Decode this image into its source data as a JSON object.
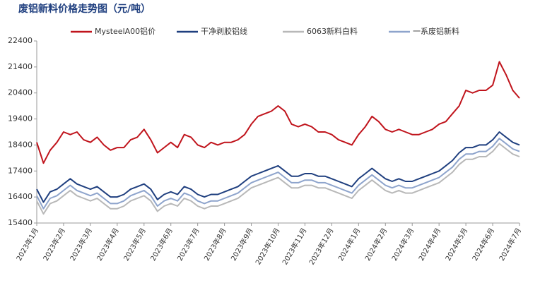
{
  "chart_data": {
    "type": "line",
    "title": "废铝新料价格走势图（元/吨）",
    "categories": [
      "2023年1月",
      null,
      null,
      null,
      "2023年2月",
      null,
      null,
      null,
      "2023年3月",
      null,
      null,
      null,
      "2023年4月",
      null,
      null,
      null,
      "2023年5月",
      null,
      null,
      null,
      "2023年6月",
      null,
      null,
      null,
      "2023年7月",
      null,
      null,
      null,
      "2023年8月",
      null,
      null,
      null,
      "2023年9月",
      null,
      null,
      null,
      "2023年10月",
      null,
      null,
      null,
      "2023年11月",
      null,
      null,
      null,
      "2023年12月",
      null,
      null,
      null,
      "2024年1月",
      null,
      null,
      null,
      "2024年2月",
      null,
      null,
      null,
      "2024年3月",
      null,
      null,
      null,
      "2024年4月",
      null,
      null,
      null,
      "2024年5月",
      null,
      null,
      null,
      "2024年6月",
      null,
      null,
      null,
      "2024年7月"
    ],
    "series": [
      {
        "name": "MysteelA00铝价",
        "color": "#c0141c",
        "values": [
          18500,
          17700,
          18200,
          18500,
          18900,
          18800,
          18900,
          18600,
          18500,
          18700,
          18400,
          18200,
          18300,
          18300,
          18600,
          18700,
          19000,
          18600,
          18100,
          18300,
          18500,
          18300,
          18800,
          18700,
          18400,
          18300,
          18500,
          18400,
          18500,
          18500,
          18600,
          18800,
          19200,
          19500,
          19600,
          19700,
          19900,
          19700,
          19200,
          19100,
          19200,
          19100,
          18900,
          18900,
          18800,
          18600,
          18500,
          18400,
          18800,
          19100,
          19500,
          19300,
          19000,
          18900,
          19000,
          18900,
          18800,
          18800,
          18900,
          19000,
          19200,
          19300,
          19600,
          19900,
          20500,
          20400,
          20500,
          20500,
          20700,
          21600,
          21100,
          20500,
          20200
        ]
      },
      {
        "name": "干净剥胶铝线",
        "color": "#1f3f7f",
        "values": [
          16700,
          16200,
          16600,
          16700,
          16900,
          17100,
          16900,
          16800,
          16700,
          16800,
          16600,
          16400,
          16400,
          16500,
          16700,
          16800,
          16900,
          16700,
          16300,
          16500,
          16600,
          16500,
          16800,
          16700,
          16500,
          16400,
          16500,
          16500,
          16600,
          16700,
          16800,
          17000,
          17200,
          17300,
          17400,
          17500,
          17600,
          17400,
          17200,
          17200,
          17300,
          17300,
          17200,
          17200,
          17100,
          17000,
          16900,
          16800,
          17100,
          17300,
          17500,
          17300,
          17100,
          17000,
          17100,
          17000,
          17000,
          17100,
          17200,
          17300,
          17400,
          17600,
          17800,
          18100,
          18300,
          18300,
          18400,
          18400,
          18600,
          18900,
          18700,
          18500,
          18400
        ]
      },
      {
        "name": "6063新料白料",
        "color": "#b8b8b8",
        "values": [
          16250,
          15750,
          16150,
          16250,
          16450,
          16650,
          16450,
          16350,
          16250,
          16350,
          16150,
          15950,
          15950,
          16050,
          16250,
          16350,
          16450,
          16250,
          15850,
          16050,
          16150,
          16050,
          16350,
          16250,
          16050,
          15950,
          16050,
          16050,
          16150,
          16250,
          16350,
          16550,
          16750,
          16850,
          16950,
          17050,
          17150,
          16950,
          16750,
          16750,
          16850,
          16850,
          16750,
          16750,
          16650,
          16550,
          16450,
          16350,
          16650,
          16850,
          17050,
          16850,
          16650,
          16550,
          16650,
          16550,
          16550,
          16650,
          16750,
          16850,
          16950,
          17150,
          17350,
          17650,
          17850,
          17850,
          17950,
          17950,
          18150,
          18450,
          18250,
          18050,
          17950
        ]
      },
      {
        "name": "一系废铝新料",
        "color": "#8ea4cc",
        "values": [
          16450,
          15950,
          16350,
          16450,
          16650,
          16850,
          16650,
          16550,
          16450,
          16550,
          16350,
          16150,
          16150,
          16250,
          16450,
          16550,
          16650,
          16450,
          16050,
          16250,
          16350,
          16250,
          16550,
          16450,
          16250,
          16150,
          16250,
          16250,
          16350,
          16450,
          16550,
          16750,
          16950,
          17050,
          17150,
          17250,
          17350,
          17150,
          16950,
          16950,
          17050,
          17050,
          16950,
          16950,
          16850,
          16750,
          16650,
          16550,
          16850,
          17050,
          17250,
          17050,
          16850,
          16750,
          16850,
          16750,
          16750,
          16850,
          16950,
          17050,
          17150,
          17350,
          17550,
          17850,
          18050,
          18050,
          18150,
          18150,
          18350,
          18650,
          18450,
          18250,
          18150
        ]
      }
    ],
    "ylim": [
      15400,
      22400
    ],
    "yticks": [
      15400,
      16400,
      17400,
      18400,
      19400,
      20400,
      21400,
      22400
    ],
    "grid": false,
    "legend": "top"
  }
}
